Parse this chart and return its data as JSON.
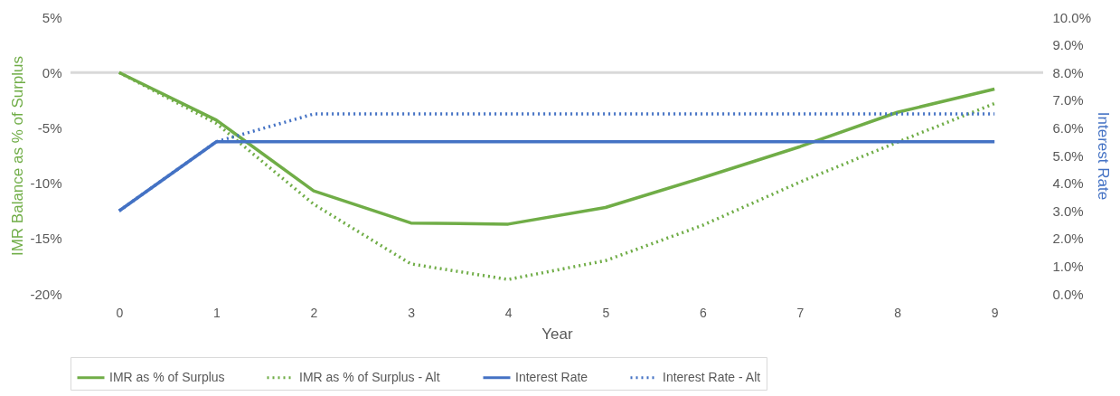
{
  "chart_data": {
    "type": "line",
    "xlabel": "Year",
    "ylabel": "IMR Balance as % of Surplus",
    "y2label": "Interest Rate",
    "categories": [
      "0",
      "1",
      "2",
      "3",
      "4",
      "5",
      "6",
      "7",
      "8",
      "9"
    ],
    "series": [
      {
        "name": "IMR as % of Surplus",
        "color": "#70ad47",
        "line_style": "solid",
        "values": [
          0,
          -4.3,
          -10.7,
          -13.6,
          -13.7,
          -12.2,
          -9.5,
          -6.7,
          -3.6,
          -1.5
        ]
      },
      {
        "name": "IMR as % of Surplus - Alt",
        "color": "#70ad47",
        "line_style": "dotted",
        "values": [
          0,
          -4.6,
          -11.9,
          -17.3,
          -18.7,
          -17.0,
          -13.8,
          -9.9,
          -6.3,
          -2.8
        ]
      },
      {
        "name": "Interest Rate",
        "color": "#4472c4",
        "line_style": "solid",
        "axis": "y2",
        "values": [
          3.0,
          5.5,
          5.5,
          5.5,
          5.5,
          5.5,
          5.5,
          5.5,
          5.5,
          5.5
        ]
      },
      {
        "name": "Interest Rate - Alt",
        "color": "#4472c4",
        "line_style": "dotted",
        "axis": "y2",
        "values": [
          3.0,
          5.5,
          6.5,
          6.5,
          6.5,
          6.5,
          6.5,
          6.5,
          6.5,
          6.5
        ]
      }
    ],
    "ylim": [
      -20,
      5
    ],
    "yticks": [
      {
        "value": -20,
        "label": "-20%"
      },
      {
        "value": -15,
        "label": "-15%"
      },
      {
        "value": -10,
        "label": "-10%"
      },
      {
        "value": -5,
        "label": "-5%"
      },
      {
        "value": 0,
        "label": "0%"
      },
      {
        "value": 5,
        "label": "5%"
      }
    ],
    "y2lim": [
      0,
      10
    ],
    "y2ticks": [
      {
        "value": 0,
        "label": "0.0%"
      },
      {
        "value": 1,
        "label": "1.0%"
      },
      {
        "value": 2,
        "label": "2.0%"
      },
      {
        "value": 3,
        "label": "3.0%"
      },
      {
        "value": 4,
        "label": "4.0%"
      },
      {
        "value": 5,
        "label": "5.0%"
      },
      {
        "value": 6,
        "label": "6.0%"
      },
      {
        "value": 7,
        "label": "7.0%"
      },
      {
        "value": 8,
        "label": "8.0%"
      },
      {
        "value": 9,
        "label": "9.0%"
      },
      {
        "value": 10,
        "label": "10.0%"
      }
    ],
    "ref_lines": [
      {
        "axis": "y",
        "value": 0,
        "color": "#d9d9d9"
      }
    ],
    "grid": false,
    "legend": "bottom",
    "marker": "none"
  }
}
